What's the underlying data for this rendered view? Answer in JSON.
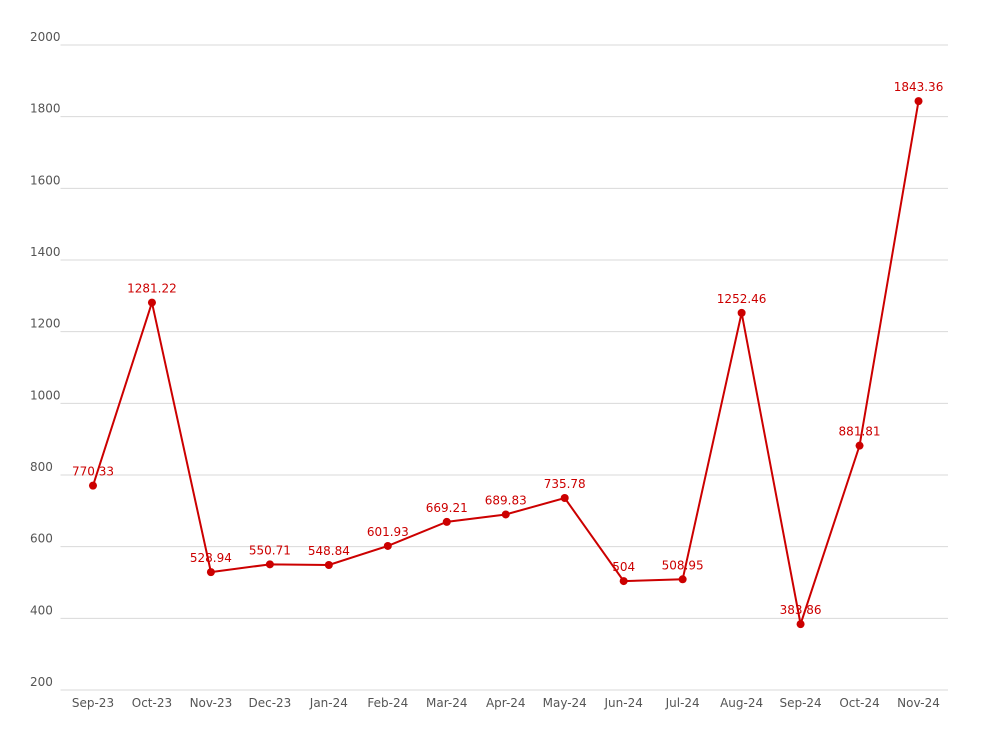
{
  "chart_data": {
    "type": "line",
    "categories": [
      "Sep-23",
      "Oct-23",
      "Nov-23",
      "Dec-23",
      "Jan-24",
      "Feb-24",
      "Mar-24",
      "Apr-24",
      "May-24",
      "Jun-24",
      "Jul-24",
      "Aug-24",
      "Sep-24",
      "Oct-24",
      "Nov-24"
    ],
    "series": [
      {
        "color": "#cc0000",
        "values": [
          770.33,
          1281.22,
          528.94,
          550.71,
          548.84,
          601.93,
          669.21,
          689.83,
          735.78,
          504,
          508.95,
          1252.46,
          383.86,
          881.81,
          1843.36
        ]
      }
    ],
    "ylim": [
      200,
      2000
    ],
    "yticks": [
      200,
      400,
      600,
      800,
      1000,
      1200,
      1400,
      1600,
      1800,
      2000
    ],
    "grid": true
  }
}
